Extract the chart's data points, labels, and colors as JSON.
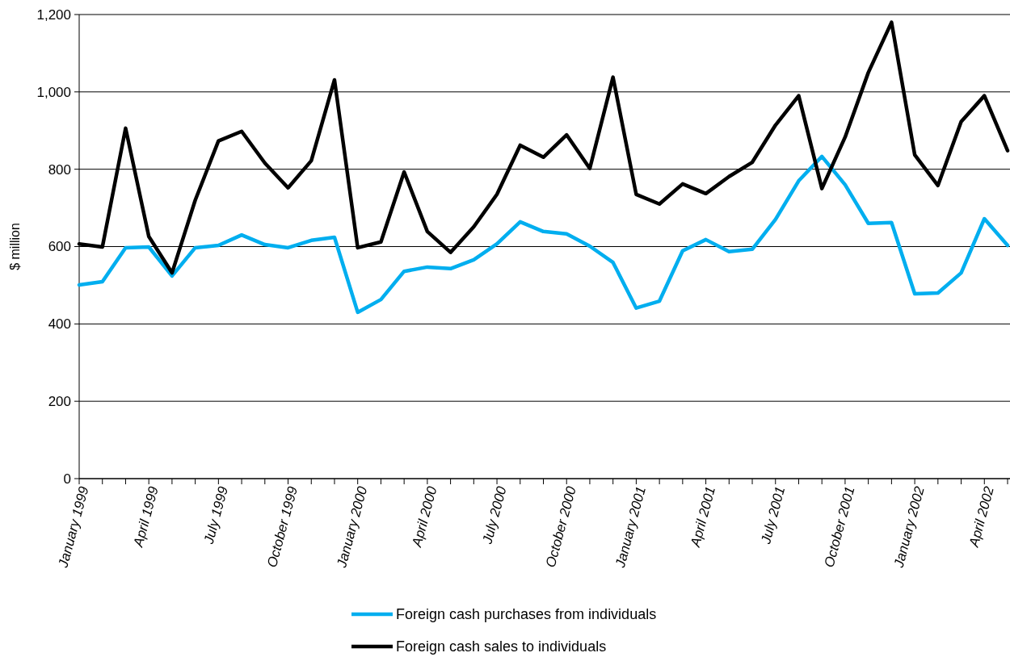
{
  "chart_data": {
    "type": "line",
    "ylabel": "$ million",
    "categories": [
      "January 1999",
      null,
      null,
      "April 1999",
      null,
      null,
      "July 1999",
      null,
      null,
      "October 1999",
      null,
      null,
      "January 2000",
      null,
      null,
      "April 2000",
      null,
      null,
      "July 2000",
      null,
      null,
      "October 2000",
      null,
      null,
      "January 2001",
      null,
      null,
      "April 2001",
      null,
      null,
      "July 2001",
      null,
      null,
      "October 2001",
      null,
      null,
      "January 2002",
      null,
      null,
      "April 2002",
      null
    ],
    "series": [
      {
        "name": "Foreign cash purchases from individuals",
        "color": "#00aeef",
        "values": [
          501,
          509,
          597,
          599,
          524,
          597,
          603,
          630,
          605,
          597,
          616,
          624,
          430,
          463,
          536,
          547,
          543,
          566,
          607,
          664,
          639,
          633,
          601,
          559,
          441,
          459,
          589,
          618,
          587,
          593,
          670,
          770,
          833,
          760,
          660,
          662,
          478,
          480,
          532,
          672,
          603
        ]
      },
      {
        "name": "Foreign cash sales to individuals",
        "color": "#000000",
        "values": [
          607,
          599,
          906,
          626,
          532,
          720,
          873,
          898,
          816,
          752,
          822,
          1031,
          597,
          612,
          793,
          639,
          585,
          651,
          735,
          862,
          831,
          889,
          802,
          1038,
          735,
          710,
          762,
          737,
          781,
          818,
          914,
          990,
          750,
          883,
          1050,
          1180,
          837,
          758,
          923,
          990,
          848
        ]
      }
    ],
    "ylim": [
      0,
      1200
    ],
    "yticks": [
      {
        "value": 0,
        "label": "0"
      },
      {
        "value": 200,
        "label": "200"
      },
      {
        "value": 400,
        "label": "400"
      },
      {
        "value": 600,
        "label": "600"
      },
      {
        "value": 800,
        "label": "800"
      },
      {
        "value": 1000,
        "label": "1,000"
      },
      {
        "value": 1200,
        "label": "1,200"
      }
    ],
    "grid": "y",
    "legend": "bottom",
    "marker": "none",
    "line_style": "solid"
  }
}
